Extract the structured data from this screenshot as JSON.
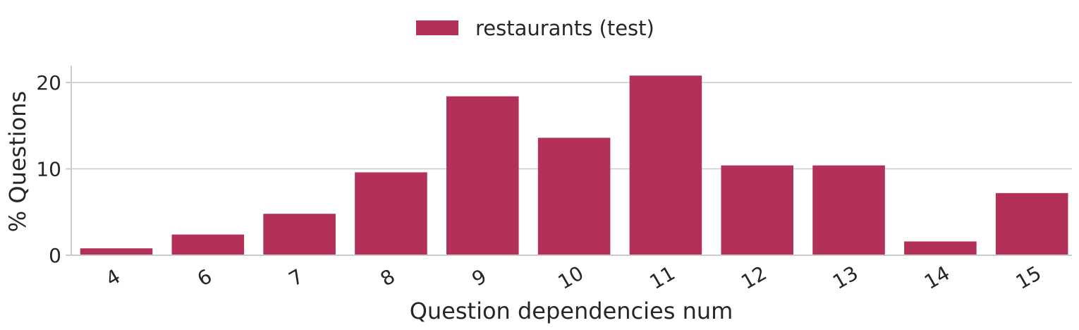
{
  "chart_data": {
    "type": "bar",
    "categories": [
      "4",
      "6",
      "7",
      "8",
      "9",
      "10",
      "11",
      "12",
      "13",
      "14",
      "15"
    ],
    "series": [
      {
        "name": "restaurants (test)",
        "values": [
          0.8,
          2.4,
          4.8,
          9.6,
          18.4,
          13.6,
          20.8,
          10.4,
          10.4,
          1.6,
          7.2
        ]
      }
    ],
    "xlabel": "Question dependencies num",
    "ylabel": "% Questions",
    "ylim": [
      0,
      22
    ],
    "yticks": [
      0,
      10,
      20
    ],
    "grid": "horizontal",
    "legend_position": "top-center",
    "colors": {
      "bar": "#b33158",
      "grid": "#cccccc",
      "axis": "#cccccc",
      "text": "#262626"
    }
  }
}
